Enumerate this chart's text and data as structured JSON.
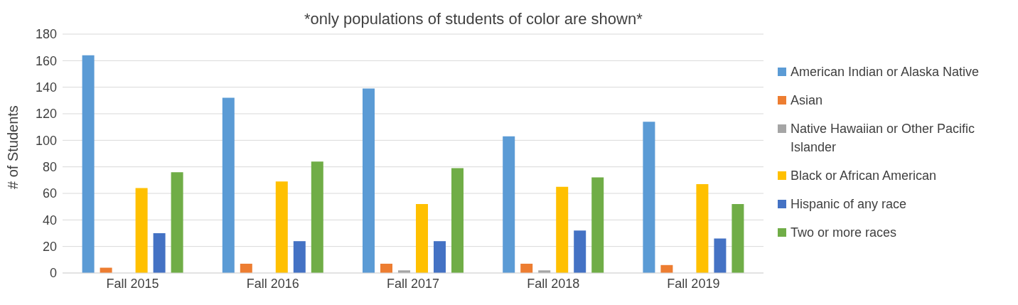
{
  "chart_data": {
    "type": "bar",
    "ylabel": "# of Students",
    "annotations": [
      "*only populations of students of color are shown*"
    ],
    "categories": [
      "Fall 2015",
      "Fall 2016",
      "Fall 2017",
      "Fall 2018",
      "Fall 2019"
    ],
    "series": [
      {
        "name": "American Indian or Alaska Native",
        "color": "#5b9bd5",
        "values": [
          164,
          132,
          139,
          103,
          114
        ]
      },
      {
        "name": "Asian",
        "color": "#ed7d31",
        "values": [
          4,
          7,
          7,
          7,
          6
        ]
      },
      {
        "name": "Native Hawaiian or Other Pacific Islander",
        "color": "#a5a5a5",
        "values": [
          0,
          0,
          2,
          2,
          0
        ]
      },
      {
        "name": "Black or African American",
        "color": "#ffc000",
        "values": [
          64,
          69,
          52,
          65,
          67
        ]
      },
      {
        "name": "Hispanic of any race",
        "color": "#4472c4",
        "values": [
          30,
          24,
          24,
          32,
          26
        ]
      },
      {
        "name": "Two or more races",
        "color": "#70ad47",
        "values": [
          76,
          84,
          79,
          72,
          52
        ]
      }
    ],
    "ylim": [
      0,
      180
    ],
    "yticks": [
      0,
      20,
      40,
      60,
      80,
      100,
      120,
      140,
      160,
      180
    ],
    "grid": "y",
    "legend": "right"
  }
}
